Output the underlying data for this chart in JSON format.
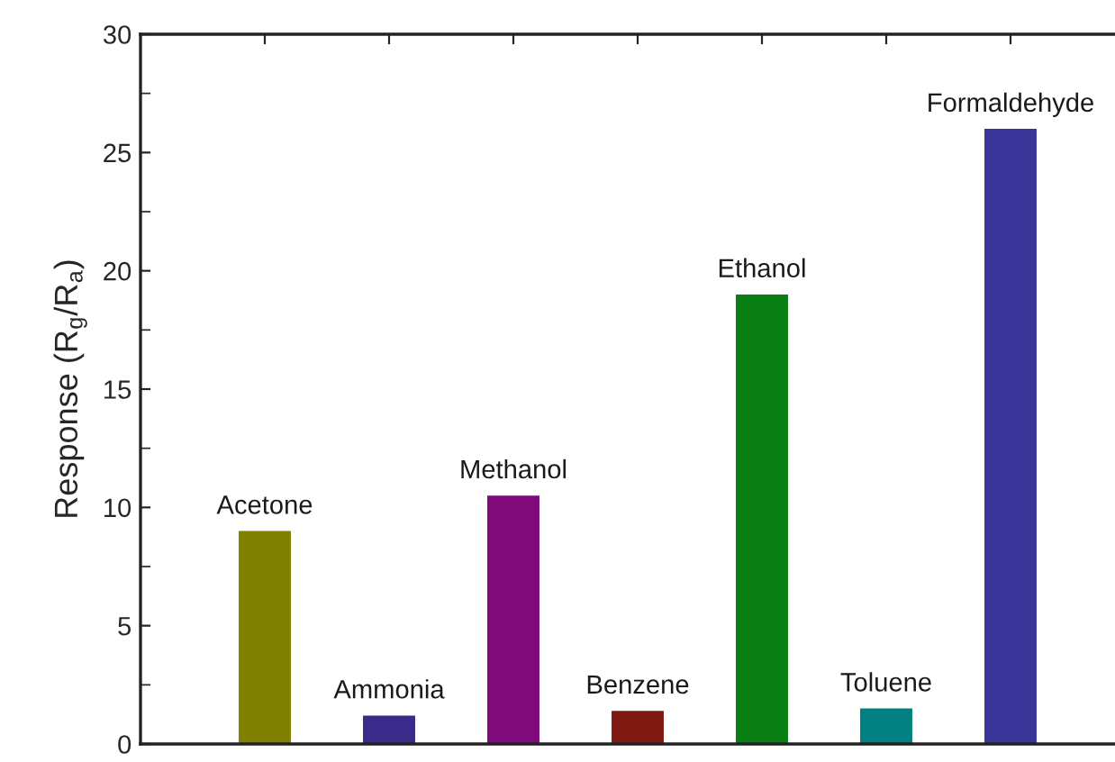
{
  "chart_data": {
    "type": "bar",
    "ylabel": "Response (R$_{g}$/R$_{a}$)",
    "categories": [
      "Acetone",
      "Ammonia",
      "Methanol",
      "Benzene",
      "Ethanol",
      "Toluene",
      "Formaldehyde"
    ],
    "values": [
      9.0,
      1.2,
      10.5,
      1.4,
      19.0,
      1.5,
      26.0
    ],
    "colors": [
      "#808000",
      "#3a2a8a",
      "#800a7a",
      "#801812",
      "#0a8014",
      "#008080",
      "#3a3599"
    ],
    "ylim": [
      0,
      30
    ],
    "yticks": [
      0,
      5,
      10,
      15,
      20,
      25,
      30
    ],
    "tick_labels": "y",
    "grid": false,
    "legend": false
  }
}
